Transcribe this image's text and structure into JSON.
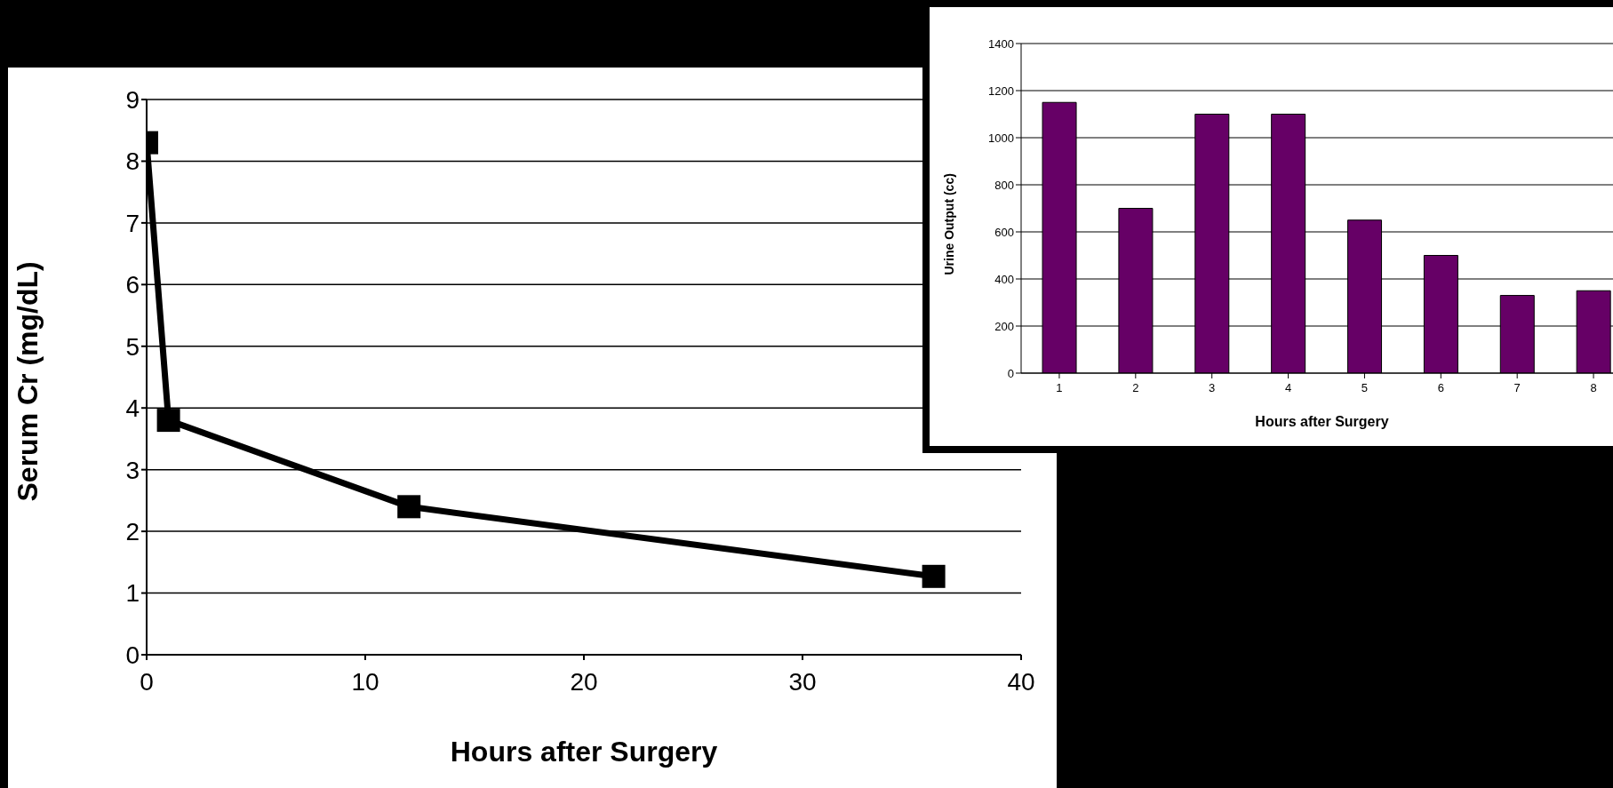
{
  "chart_data": [
    {
      "type": "line",
      "xlabel": "Hours after Surgery",
      "ylabel": "Serum Cr (mg/dL)",
      "x": [
        0,
        1,
        12,
        36
      ],
      "series": [
        {
          "color": "#000000",
          "values": [
            8.3,
            3.8,
            2.4,
            1.27
          ]
        }
      ],
      "xlim": [
        0,
        40
      ],
      "xticks": [
        0,
        10,
        20,
        30,
        40
      ],
      "ylim": [
        0,
        9
      ],
      "yticks": [
        0,
        1,
        2,
        3,
        4,
        5,
        6,
        7,
        8,
        9
      ],
      "grid": "y",
      "marker": "square",
      "line_style": "solid"
    },
    {
      "type": "bar",
      "xlabel": "Hours after Surgery",
      "ylabel": "Urine Output (cc)",
      "categories": [
        "1",
        "2",
        "3",
        "4",
        "5",
        "6",
        "7",
        "8"
      ],
      "series": [
        {
          "color": "#660066",
          "values": [
            1150,
            700,
            1100,
            1100,
            650,
            500,
            330,
            350
          ]
        }
      ],
      "ylim": [
        0,
        1400
      ],
      "yticks": [
        0,
        200,
        400,
        600,
        800,
        1000,
        1200,
        1400
      ],
      "grid": "y"
    }
  ]
}
